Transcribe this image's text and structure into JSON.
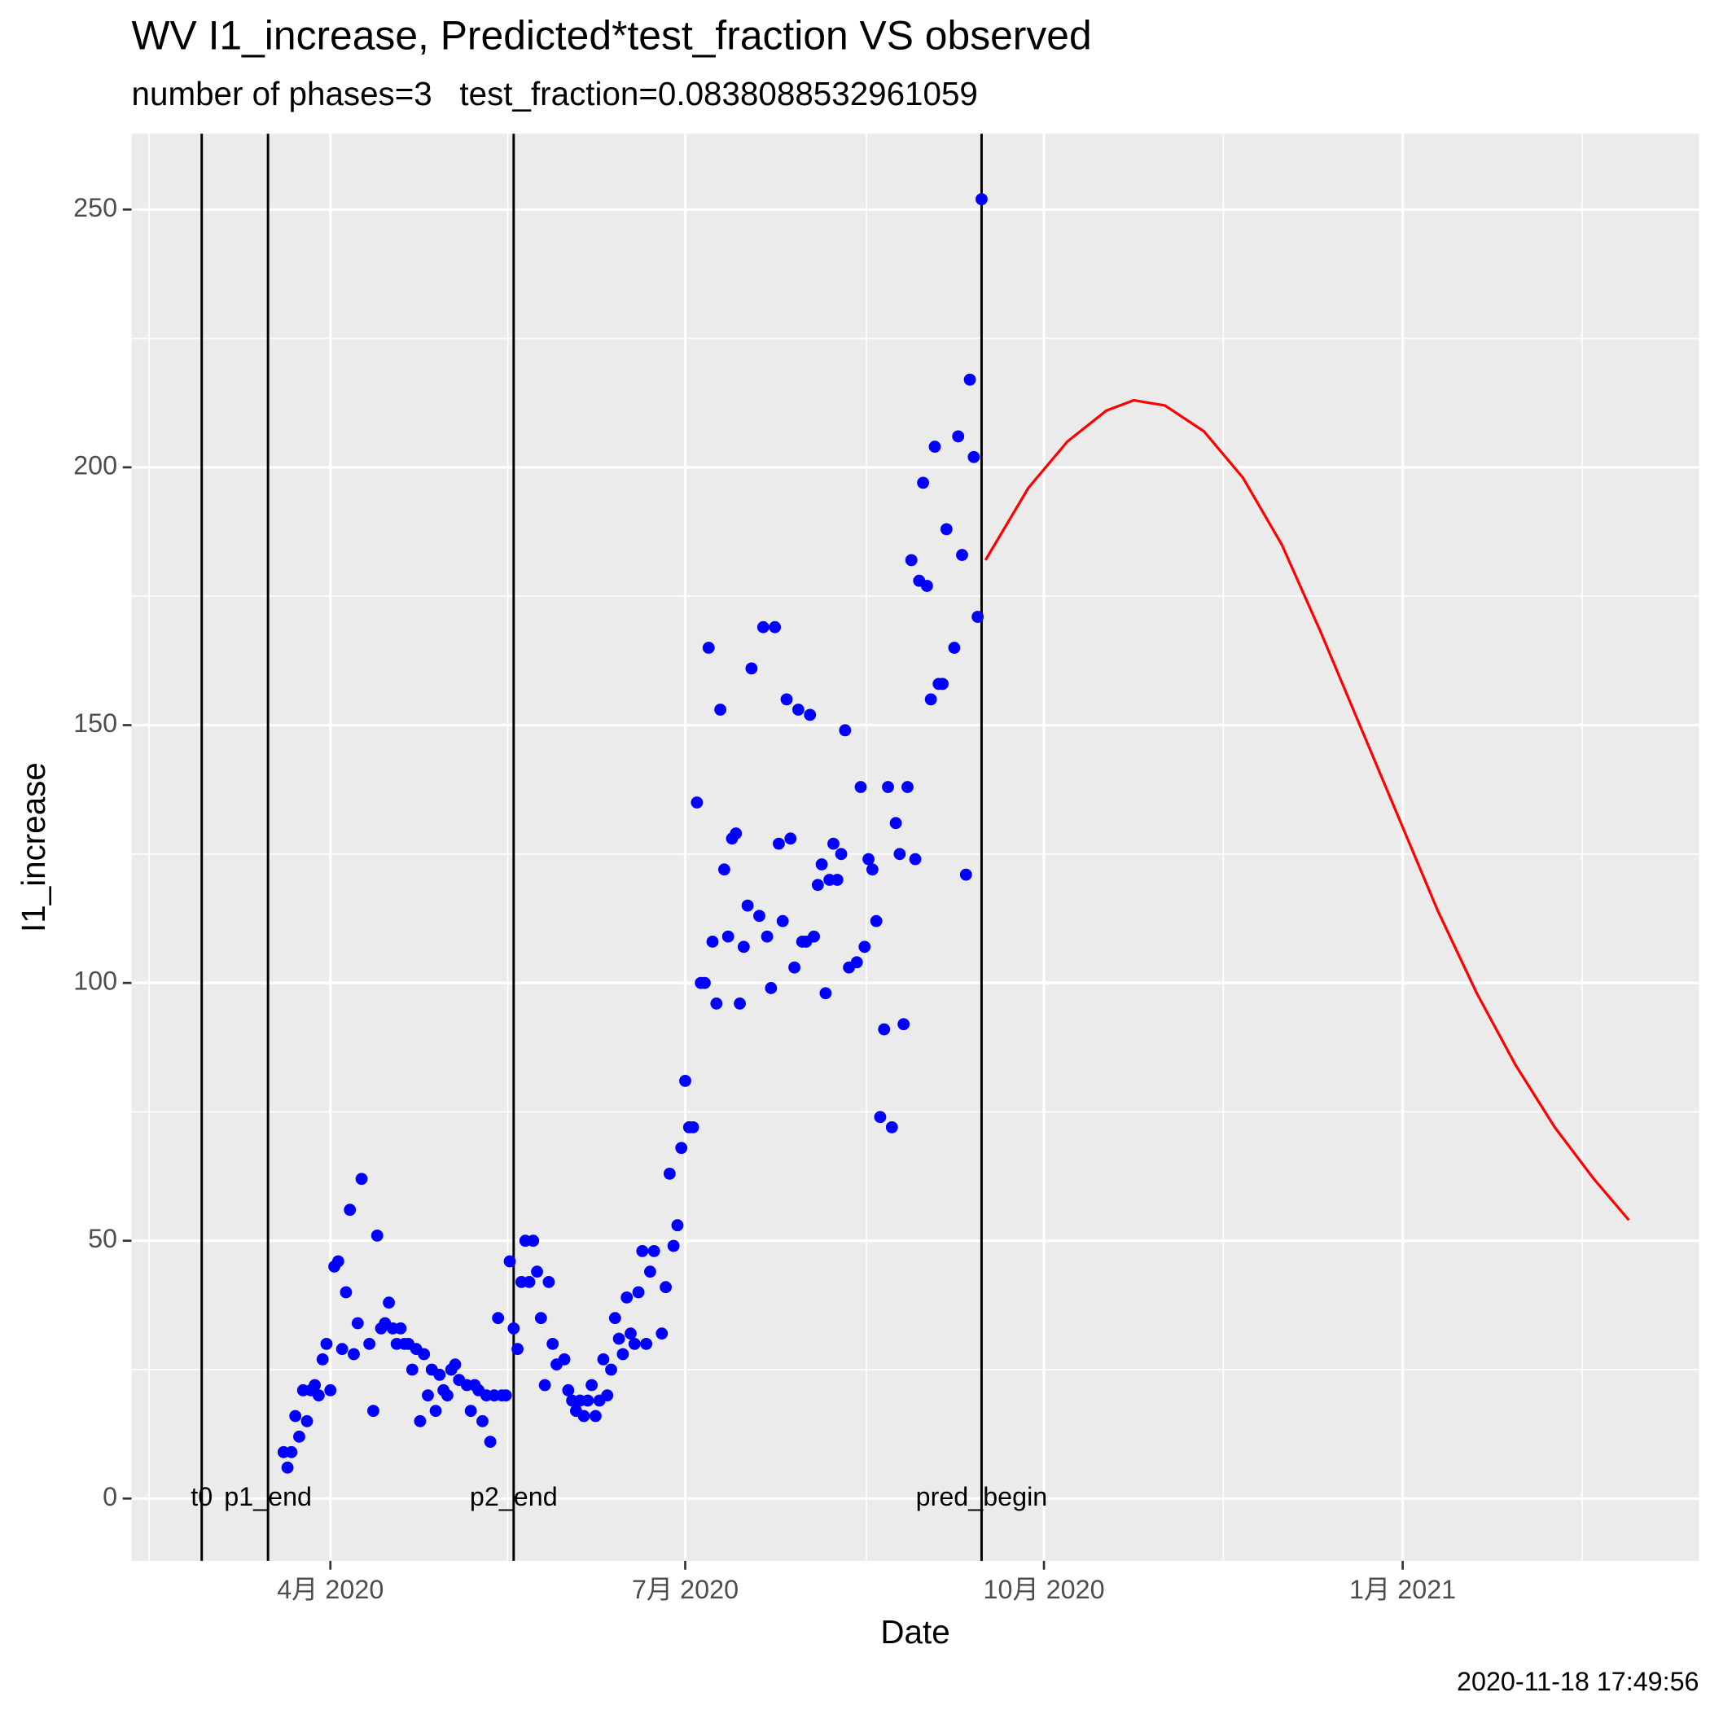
{
  "chart_data": {
    "type": "scatter",
    "title": "WV I1_increase, Predicted*test_fraction VS observed",
    "subtitle": "number of phases=3   test_fraction=0.0838088532961059",
    "x_label": "Date",
    "y_label": "I1_increase",
    "caption": "2020-11-18 17:49:56",
    "xlim": [
      40,
      442
    ],
    "ylim": [
      -12.1,
      264.7
    ],
    "xticks": [
      {
        "value": 91,
        "label": "4月 2020"
      },
      {
        "value": 182,
        "label": "7月 2020"
      },
      {
        "value": 274,
        "label": "10月 2020"
      },
      {
        "value": 366,
        "label": "1月 2021"
      }
    ],
    "yticks": [
      0,
      50,
      100,
      150,
      200,
      250
    ],
    "xminor": [
      44.5,
      136.5,
      228.5,
      320,
      412
    ],
    "yminor": [
      25,
      75,
      125,
      175,
      225
    ],
    "grid": true,
    "vlines": [
      {
        "x": 58,
        "label": "t0"
      },
      {
        "x": 75,
        "label": "p1_end"
      },
      {
        "x": 138,
        "label": "p2_end"
      },
      {
        "x": 258,
        "label": "pred_begin"
      }
    ],
    "series": [
      {
        "kind": "point",
        "color": "#0000ff",
        "x": [
          79,
          80,
          81,
          82,
          83,
          84,
          85,
          86,
          87,
          88,
          89,
          90,
          91,
          92,
          93,
          94,
          95,
          96,
          97,
          98,
          99,
          101,
          102,
          103,
          104,
          105,
          106,
          107,
          108,
          109,
          110,
          111,
          112,
          113,
          114,
          115,
          116,
          117,
          118,
          119,
          120,
          121,
          122,
          123,
          124,
          126,
          127,
          128,
          129,
          130,
          131,
          132,
          133,
          134,
          135,
          136,
          137,
          138,
          139,
          140,
          141,
          142,
          143,
          144,
          145,
          146,
          147,
          148,
          149,
          151,
          152,
          153,
          154,
          155,
          156,
          157,
          158,
          159,
          160,
          161,
          162,
          163,
          164,
          165,
          166,
          167,
          168,
          169,
          170,
          171,
          172,
          173,
          174,
          176,
          177,
          178,
          179,
          180,
          181,
          182,
          183,
          184,
          185,
          186,
          187,
          188,
          189,
          190,
          191,
          192,
          193,
          194,
          195,
          196,
          197,
          198,
          199,
          201,
          202,
          203,
          204,
          205,
          206,
          207,
          208,
          209,
          210,
          211,
          212,
          213,
          214,
          215,
          216,
          217,
          218,
          219,
          220,
          221,
          222,
          223,
          224,
          226,
          227,
          228,
          229,
          230,
          231,
          232,
          233,
          234,
          235,
          236,
          237,
          238,
          239,
          240,
          241,
          242,
          243,
          244,
          245,
          246,
          247,
          248,
          249,
          251,
          252,
          253,
          254,
          255,
          256,
          257,
          258
        ],
        "values": [
          9,
          6,
          9,
          16,
          12,
          21,
          15,
          21,
          22,
          20,
          27,
          30,
          21,
          45,
          46,
          29,
          40,
          56,
          28,
          34,
          62,
          30,
          17,
          51,
          33,
          34,
          38,
          33,
          30,
          33,
          30,
          30,
          25,
          29,
          15,
          28,
          20,
          25,
          17,
          24,
          21,
          20,
          25,
          26,
          23,
          22,
          17,
          22,
          21,
          15,
          20,
          11,
          20,
          35,
          20,
          20,
          46,
          33,
          29,
          42,
          50,
          42,
          50,
          44,
          35,
          22,
          42,
          30,
          26,
          27,
          21,
          19,
          17,
          19,
          16,
          19,
          22,
          16,
          19,
          27,
          20,
          25,
          35,
          31,
          28,
          39,
          32,
          30,
          40,
          48,
          30,
          44,
          48,
          32,
          41,
          63,
          49,
          53,
          68,
          81,
          72,
          72,
          135,
          100,
          100,
          165,
          108,
          96,
          153,
          122,
          109,
          128,
          129,
          96,
          107,
          115,
          161,
          113,
          169,
          109,
          99,
          169,
          127,
          112,
          155,
          128,
          103,
          153,
          108,
          108,
          152,
          109,
          119,
          123,
          98,
          120,
          127,
          120,
          125,
          149,
          103,
          104,
          138,
          107,
          124,
          122,
          112,
          74,
          91,
          138,
          72,
          131,
          125,
          92,
          138,
          182,
          124,
          178,
          197,
          177,
          155,
          204,
          158,
          158,
          188,
          165,
          206,
          183,
          121,
          217,
          202,
          171,
          252
        ]
      },
      {
        "kind": "line",
        "color": "#ff0000",
        "x": [
          259,
          270,
          280,
          290,
          297,
          305,
          315,
          325,
          335,
          345,
          355,
          365,
          375,
          385,
          395,
          405,
          415,
          424
        ],
        "values": [
          182,
          196,
          205,
          211,
          213,
          212,
          207,
          198,
          185,
          168,
          150,
          132,
          114,
          98,
          84,
          72,
          62,
          54
        ]
      }
    ]
  }
}
